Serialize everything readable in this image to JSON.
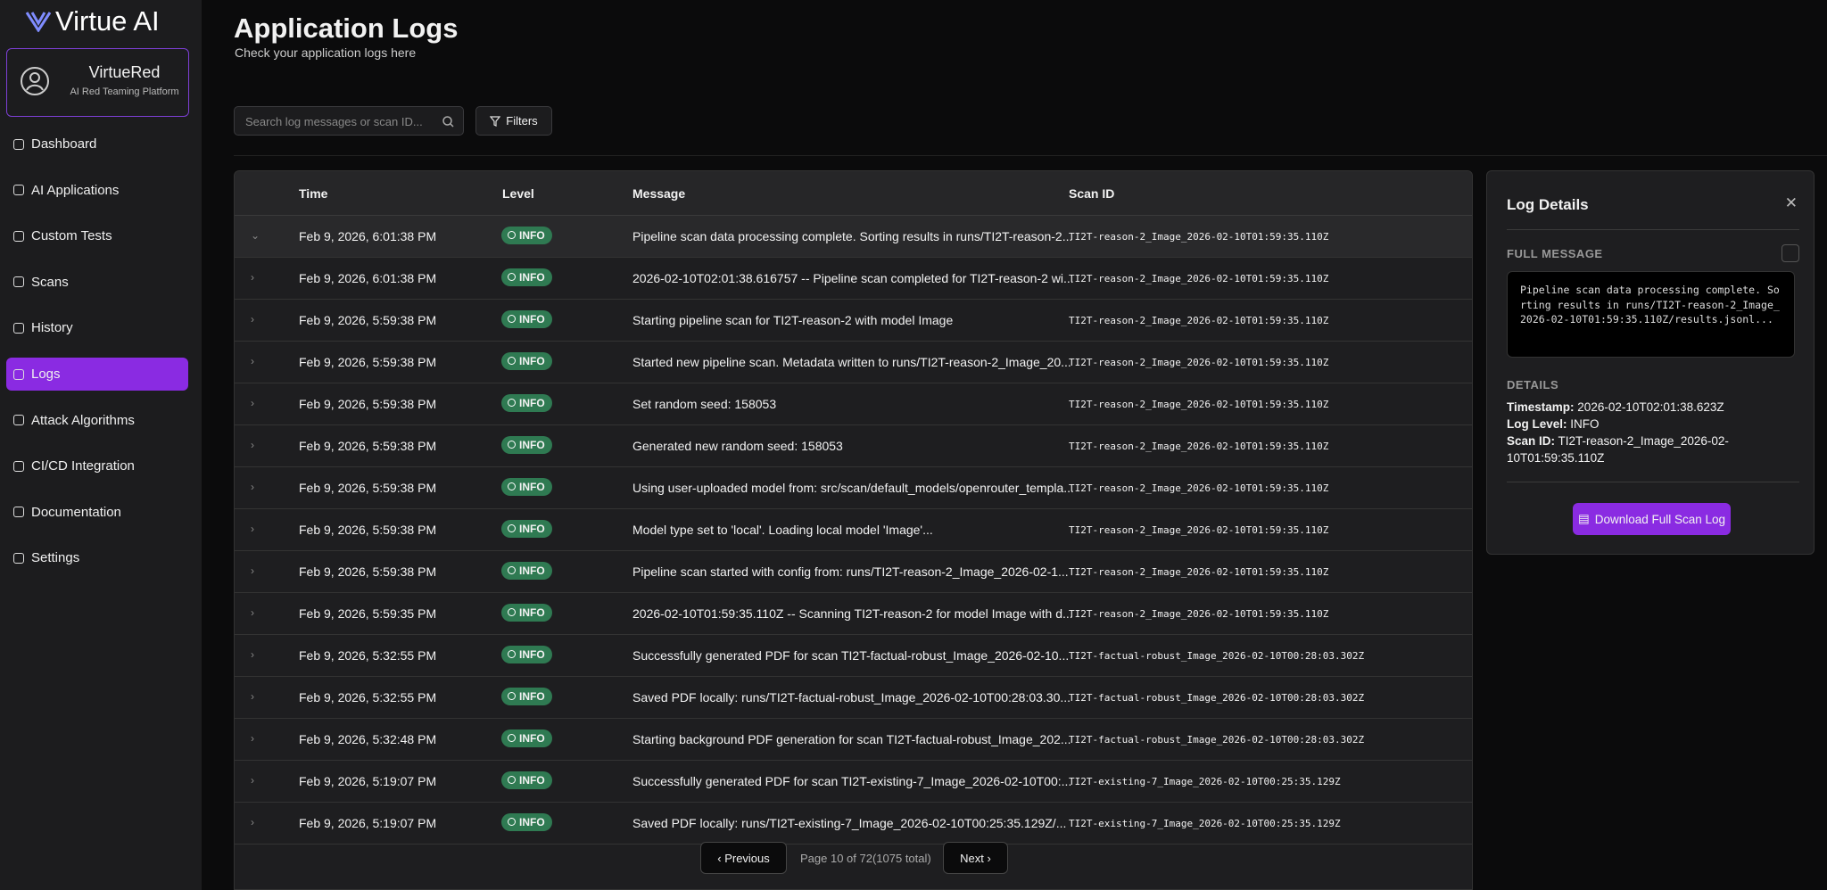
{
  "sidebar": {
    "brand": "Virtue AI",
    "profile": {
      "name": "VirtueRed",
      "subtitle": "AI Red Teaming Platform"
    },
    "nav": [
      "Dashboard",
      "AI Applications",
      "Custom Tests",
      "Scans",
      "History",
      "Logs",
      "Attack Algorithms",
      "CI/CD Integration",
      "Documentation",
      "Settings"
    ],
    "active_nav": 5
  },
  "header": {
    "title": "Application Logs",
    "subtitle": "Check your application logs here"
  },
  "toolbar": {
    "search_placeholder": "Search log messages or scan ID...",
    "filters": "Filters"
  },
  "table": {
    "columns": [
      "Time",
      "Level",
      "Message",
      "Scan ID"
    ],
    "rows": [
      [
        "Feb 9, 2026, 6:01:38 PM",
        "INFO",
        "Pipeline scan data processing complete. Sorting results in runs/TI2T-reason-2...",
        "TI2T-reason-2_Image_2026-02-10T01:59:35.110Z"
      ],
      [
        "Feb 9, 2026, 6:01:38 PM",
        "INFO",
        "2026-02-10T02:01:38.616757 -- Pipeline scan completed for TI2T-reason-2 wi...",
        "TI2T-reason-2_Image_2026-02-10T01:59:35.110Z"
      ],
      [
        "Feb 9, 2026, 5:59:38 PM",
        "INFO",
        "Starting pipeline scan for TI2T-reason-2 with model Image",
        "TI2T-reason-2_Image_2026-02-10T01:59:35.110Z"
      ],
      [
        "Feb 9, 2026, 5:59:38 PM",
        "INFO",
        "Started new pipeline scan. Metadata written to runs/TI2T-reason-2_Image_20...",
        "TI2T-reason-2_Image_2026-02-10T01:59:35.110Z"
      ],
      [
        "Feb 9, 2026, 5:59:38 PM",
        "INFO",
        "Set random seed: 158053",
        "TI2T-reason-2_Image_2026-02-10T01:59:35.110Z"
      ],
      [
        "Feb 9, 2026, 5:59:38 PM",
        "INFO",
        "Generated new random seed: 158053",
        "TI2T-reason-2_Image_2026-02-10T01:59:35.110Z"
      ],
      [
        "Feb 9, 2026, 5:59:38 PM",
        "INFO",
        "Using user-uploaded model from: src/scan/default_models/openrouter_templa...",
        "TI2T-reason-2_Image_2026-02-10T01:59:35.110Z"
      ],
      [
        "Feb 9, 2026, 5:59:38 PM",
        "INFO",
        "Model type set to 'local'. Loading local model 'Image'...",
        "TI2T-reason-2_Image_2026-02-10T01:59:35.110Z"
      ],
      [
        "Feb 9, 2026, 5:59:38 PM",
        "INFO",
        "Pipeline scan started with config from: runs/TI2T-reason-2_Image_2026-02-1...",
        "TI2T-reason-2_Image_2026-02-10T01:59:35.110Z"
      ],
      [
        "Feb 9, 2026, 5:59:35 PM",
        "INFO",
        "2026-02-10T01:59:35.110Z -- Scanning TI2T-reason-2 for model Image with d...",
        "TI2T-reason-2_Image_2026-02-10T01:59:35.110Z"
      ],
      [
        "Feb 9, 2026, 5:32:55 PM",
        "INFO",
        "Successfully generated PDF for scan TI2T-factual-robust_Image_2026-02-10...",
        "TI2T-factual-robust_Image_2026-02-10T00:28:03.302Z"
      ],
      [
        "Feb 9, 2026, 5:32:55 PM",
        "INFO",
        "Saved PDF locally: runs/TI2T-factual-robust_Image_2026-02-10T00:28:03.30...",
        "TI2T-factual-robust_Image_2026-02-10T00:28:03.302Z"
      ],
      [
        "Feb 9, 2026, 5:32:48 PM",
        "INFO",
        "Starting background PDF generation for scan TI2T-factual-robust_Image_202...",
        "TI2T-factual-robust_Image_2026-02-10T00:28:03.302Z"
      ],
      [
        "Feb 9, 2026, 5:19:07 PM",
        "INFO",
        "Successfully generated PDF for scan TI2T-existing-7_Image_2026-02-10T00:...",
        "TI2T-existing-7_Image_2026-02-10T00:25:35.129Z"
      ],
      [
        "Feb 9, 2026, 5:19:07 PM",
        "INFO",
        "Saved PDF locally: runs/TI2T-existing-7_Image_2026-02-10T00:25:35.129Z/...",
        "TI2T-existing-7_Image_2026-02-10T00:25:35.129Z"
      ]
    ],
    "selected_row": 0
  },
  "pagination": {
    "previous": "Previous",
    "status": "Page 10 of 72(1075 total)",
    "next": "Next"
  },
  "details": {
    "title": "Log Details",
    "full_message_label": "FULL MESSAGE",
    "full_message": "Pipeline scan data processing complete. Sorting results in runs/TI2T-reason-2_Image_2026-02-10T01:59:35.110Z/results.jsonl...",
    "details_label": "DETAILS",
    "fields": [
      {
        "label": "Timestamp:",
        "value": "2026-02-10T02:01:38.623Z"
      },
      {
        "label": "Log Level:",
        "value": "INFO"
      },
      {
        "label": "Scan ID:",
        "value": "TI2T-reason-2_Image_2026-02-10T01:59:35.110Z"
      }
    ],
    "download": "Download Full Scan Log"
  }
}
